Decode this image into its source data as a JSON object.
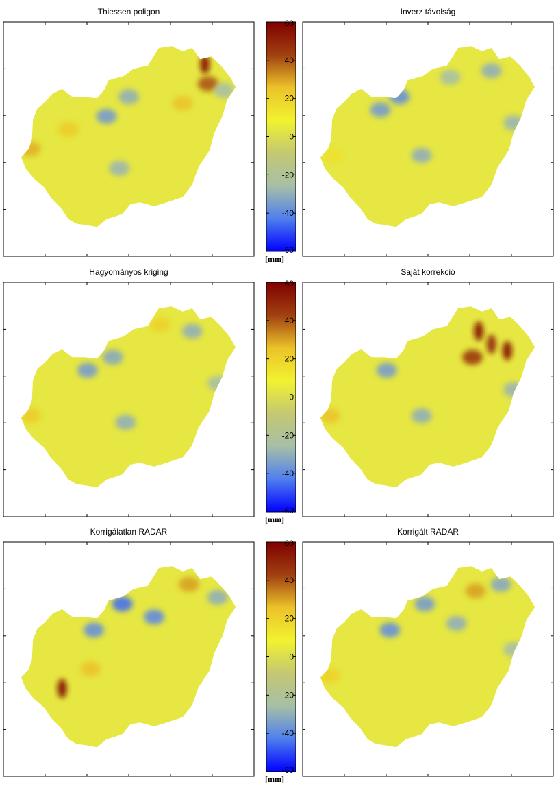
{
  "figure": {
    "colorbar": {
      "min": -60,
      "max": 60,
      "ticks": [
        60,
        40,
        20,
        0,
        -20,
        -40,
        -60
      ],
      "unit": "[mm]",
      "colormap": [
        "#0000ff",
        "#4f7fee",
        "#a7bfa6",
        "#c4c872",
        "#f2f230",
        "#ebc22a",
        "#a04010",
        "#7f0000"
      ]
    }
  },
  "chart_data": [
    {
      "type": "heatmap",
      "title": "Thiessen poligon",
      "xlabel": "",
      "ylabel": "",
      "colorbar_range": [
        -60,
        60
      ],
      "features": [
        {
          "lon": 21.9,
          "lat": 48.3,
          "value": 58
        },
        {
          "lon": 22.0,
          "lat": 48.0,
          "value": 40
        },
        {
          "lon": 21.2,
          "lat": 47.7,
          "value": 25
        },
        {
          "lon": 18.8,
          "lat": 47.5,
          "value": -35
        },
        {
          "lon": 17.6,
          "lat": 47.3,
          "value": 22
        },
        {
          "lon": 16.4,
          "lat": 47.0,
          "value": 28
        },
        {
          "lon": 19.5,
          "lat": 47.8,
          "value": -30
        },
        {
          "lon": 19.2,
          "lat": 46.7,
          "value": -28
        },
        {
          "lon": 22.5,
          "lat": 47.9,
          "value": -25
        }
      ]
    },
    {
      "type": "heatmap",
      "title": "Inverz távolság",
      "xlabel": "",
      "ylabel": "",
      "colorbar_range": [
        -60,
        60
      ],
      "features": [
        {
          "lon": 18.0,
          "lat": 47.6,
          "value": -35
        },
        {
          "lon": 18.6,
          "lat": 47.8,
          "value": -38
        },
        {
          "lon": 19.3,
          "lat": 46.9,
          "value": -30
        },
        {
          "lon": 21.5,
          "lat": 48.2,
          "value": -30
        },
        {
          "lon": 22.2,
          "lat": 47.4,
          "value": -28
        },
        {
          "lon": 20.2,
          "lat": 48.1,
          "value": -25
        },
        {
          "lon": 16.5,
          "lat": 46.9,
          "value": 15
        }
      ]
    },
    {
      "type": "heatmap",
      "title": "Hagyományos kriging",
      "xlabel": "",
      "ylabel": "",
      "colorbar_range": [
        -60,
        60
      ],
      "features": [
        {
          "lon": 18.2,
          "lat": 47.6,
          "value": -35
        },
        {
          "lon": 19.4,
          "lat": 46.8,
          "value": -30
        },
        {
          "lon": 21.5,
          "lat": 48.2,
          "value": -30
        },
        {
          "lon": 19.0,
          "lat": 47.8,
          "value": -32
        },
        {
          "lon": 20.5,
          "lat": 48.3,
          "value": 20
        },
        {
          "lon": 16.4,
          "lat": 46.9,
          "value": 22
        },
        {
          "lon": 22.3,
          "lat": 47.4,
          "value": -25
        }
      ]
    },
    {
      "type": "heatmap",
      "title": "Saját korrekció",
      "xlabel": "",
      "ylabel": "",
      "colorbar_range": [
        -60,
        60
      ],
      "features": [
        {
          "lon": 21.1,
          "lat": 48.2,
          "value": 58
        },
        {
          "lon": 21.5,
          "lat": 48.0,
          "value": 50
        },
        {
          "lon": 22.0,
          "lat": 47.9,
          "value": 58
        },
        {
          "lon": 20.9,
          "lat": 47.8,
          "value": 45
        },
        {
          "lon": 18.2,
          "lat": 47.6,
          "value": -35
        },
        {
          "lon": 19.3,
          "lat": 46.9,
          "value": -30
        },
        {
          "lon": 22.2,
          "lat": 47.3,
          "value": -28
        },
        {
          "lon": 16.4,
          "lat": 46.9,
          "value": 25
        }
      ]
    },
    {
      "type": "heatmap",
      "title": "Korrigálatlan RADAR",
      "xlabel": "",
      "ylabel": "",
      "colorbar_range": [
        -60,
        60
      ],
      "features": [
        {
          "lon": 17.4,
          "lat": 46.7,
          "value": 58
        },
        {
          "lon": 19.3,
          "lat": 48.0,
          "value": -45
        },
        {
          "lon": 20.3,
          "lat": 47.8,
          "value": -40
        },
        {
          "lon": 18.4,
          "lat": 47.6,
          "value": -38
        },
        {
          "lon": 21.4,
          "lat": 48.3,
          "value": 30
        },
        {
          "lon": 22.3,
          "lat": 48.1,
          "value": -30
        },
        {
          "lon": 18.3,
          "lat": 47.0,
          "value": 25
        }
      ]
    },
    {
      "type": "heatmap",
      "title": "Korrigált RADAR",
      "xlabel": "",
      "ylabel": "",
      "colorbar_range": [
        -60,
        60
      ],
      "features": [
        {
          "lon": 21.0,
          "lat": 48.2,
          "value": 30
        },
        {
          "lon": 18.3,
          "lat": 47.6,
          "value": -38
        },
        {
          "lon": 19.4,
          "lat": 48.0,
          "value": -35
        },
        {
          "lon": 20.4,
          "lat": 47.7,
          "value": -30
        },
        {
          "lon": 21.8,
          "lat": 48.3,
          "value": -32
        },
        {
          "lon": 22.2,
          "lat": 47.3,
          "value": -25
        },
        {
          "lon": 16.4,
          "lat": 46.9,
          "value": 20
        }
      ]
    }
  ]
}
